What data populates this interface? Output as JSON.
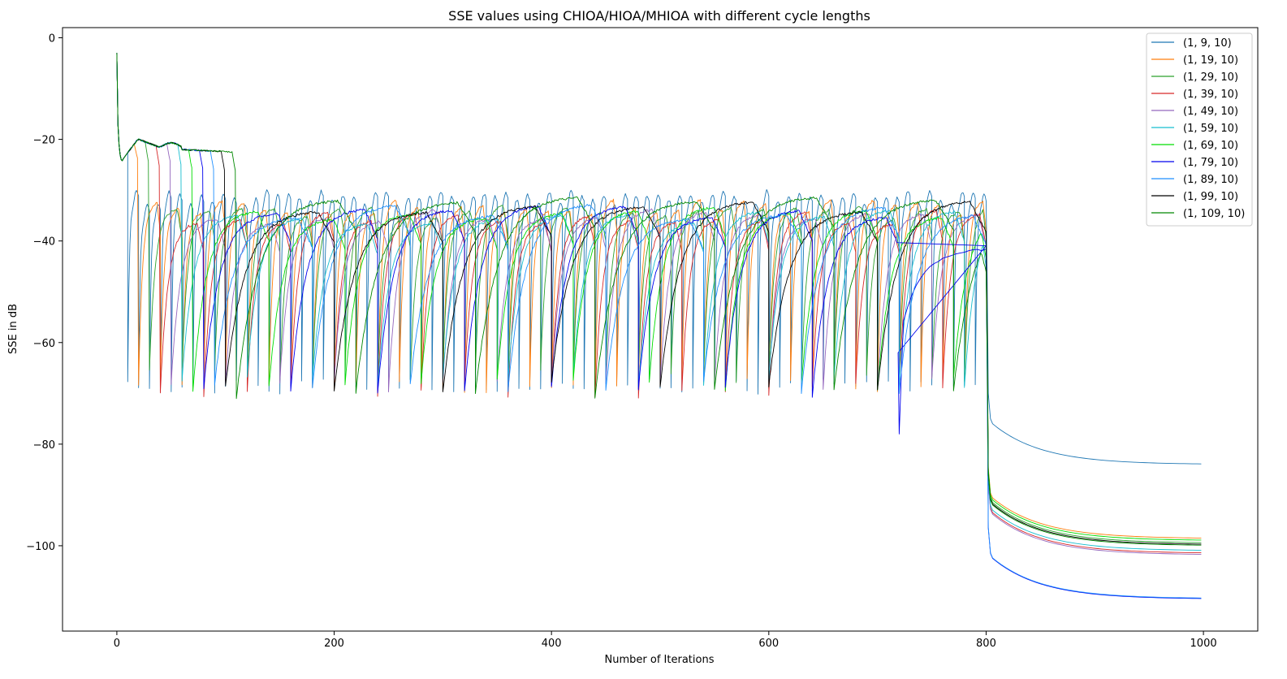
{
  "chart_data": {
    "type": "line",
    "title": "SSE values using CHIOA/HIOA/MHIOA with different cycle lengths",
    "xlabel": "Number of Iterations",
    "ylabel": "SSE in dB",
    "xlim": [
      -50,
      1050
    ],
    "ylim": [
      -116.8,
      2
    ],
    "xticks": [
      0,
      200,
      400,
      600,
      800,
      1000
    ],
    "yticks": [
      0,
      -20,
      -40,
      -60,
      -80,
      -100
    ],
    "grid": false,
    "legend_position": "upper-right",
    "series": [
      {
        "name": "(1, 9, 10)",
        "color": "#1f77b4",
        "period": 10,
        "osc_base": -32,
        "dip": -67,
        "plateau": -32,
        "final": -84,
        "max_dip": -78
      },
      {
        "name": "(1, 19, 10)",
        "color": "#ff7f0e",
        "period": 20,
        "osc_base": -30,
        "dip": -67,
        "plateau": -33,
        "final": -98.6,
        "max_dip": -68
      },
      {
        "name": "(1, 29, 10)",
        "color": "#2ca02c",
        "period": 30,
        "osc_base": -33,
        "dip": -65,
        "plateau": -34,
        "final": -99.5,
        "max_dip": -68
      },
      {
        "name": "(1, 39, 10)",
        "color": "#d62728",
        "period": 40,
        "osc_base": -27,
        "dip": -68,
        "plateau": -35,
        "final": -101.5,
        "max_dip": -69
      },
      {
        "name": "(1, 49, 10)",
        "color": "#9467bd",
        "period": 50,
        "osc_base": -27,
        "dip": -67,
        "plateau": -35,
        "final": -101.8,
        "max_dip": -69
      },
      {
        "name": "(1, 59, 10)",
        "color": "#17becf",
        "period": 60,
        "osc_base": -28,
        "dip": -66,
        "plateau": -35,
        "final": -101,
        "max_dip": -68
      },
      {
        "name": "(1, 69, 10)",
        "color": "#00dd00",
        "period": 70,
        "osc_base": -28,
        "dip": -67,
        "plateau": -34,
        "final": -99,
        "max_dip": -69
      },
      {
        "name": "(1, 79, 10)",
        "color": "#0000ee",
        "period": 80,
        "osc_base": -27,
        "dip": -68,
        "plateau": -34,
        "final": -110.5,
        "max_dip": -78
      },
      {
        "name": "(1, 89, 10)",
        "color": "#1e8fff",
        "period": 90,
        "osc_base": -25,
        "dip": -67,
        "plateau": -34,
        "final": -110.4,
        "max_dip": -68
      },
      {
        "name": "(1, 99, 10)",
        "color": "#000000",
        "period": 100,
        "osc_base": -23,
        "dip": -67,
        "plateau": -33,
        "final": -99.8,
        "max_dip": -68
      },
      {
        "name": "(1, 109, 10)",
        "color": "#008800",
        "period": 110,
        "osc_base": -22,
        "dip": -68,
        "plateau": -32,
        "final": -100,
        "max_dip": -69
      }
    ]
  }
}
